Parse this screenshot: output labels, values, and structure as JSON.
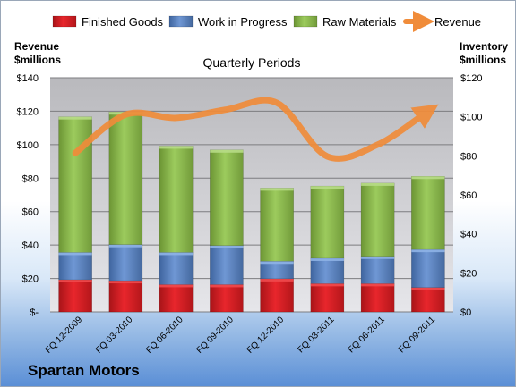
{
  "chart_data": {
    "type": "bar",
    "stacked": true,
    "title": "Quarterly Periods",
    "company": "Spartan Motors",
    "left_axis_label": [
      "Revenue",
      "$millions"
    ],
    "right_axis_label": [
      "Inventory",
      "$millions"
    ],
    "categories": [
      "FQ 12-2009",
      "FQ 03-2010",
      "FQ 06-2010",
      "FQ 09-2010",
      "FQ 12-2010",
      "FQ 03-2011",
      "FQ 06-2011",
      "FQ 09-2011"
    ],
    "left_axis": {
      "ylim": [
        0,
        140
      ],
      "ticks": [
        0,
        20,
        40,
        60,
        80,
        100,
        120,
        140
      ],
      "tick_labels": [
        "$-",
        "$20",
        "$40",
        "$60",
        "$80",
        "$100",
        "$120",
        "$140"
      ]
    },
    "right_axis": {
      "ylim": [
        0,
        120
      ],
      "ticks": [
        0,
        20,
        40,
        60,
        80,
        100,
        120
      ],
      "tick_labels": [
        "$0",
        "$20",
        "$40",
        "$60",
        "$80",
        "$100",
        "$120"
      ]
    },
    "series": [
      {
        "name": "Finished Goods",
        "axis": "right",
        "kind": "bar",
        "color": "#e0191f",
        "values": [
          16.5,
          16,
          14,
          14,
          17,
          14.5,
          14.5,
          12.5
        ]
      },
      {
        "name": "Work in Progress",
        "axis": "right",
        "kind": "bar",
        "color": "#5b86c9",
        "values": [
          14,
          18.5,
          16.5,
          20,
          9,
          13,
          14,
          19.5
        ]
      },
      {
        "name": "Raw Materials",
        "axis": "right",
        "kind": "bar",
        "color": "#8fc050",
        "values": [
          69.5,
          68,
          54.5,
          49,
          37.5,
          37,
          37.5,
          37.5
        ]
      },
      {
        "name": "Revenue",
        "axis": "left",
        "kind": "line",
        "color": "#f08c3a",
        "values": [
          95,
          118,
          116,
          121,
          125,
          93,
          100,
          120
        ]
      }
    ],
    "grid": true,
    "legend": "top"
  }
}
